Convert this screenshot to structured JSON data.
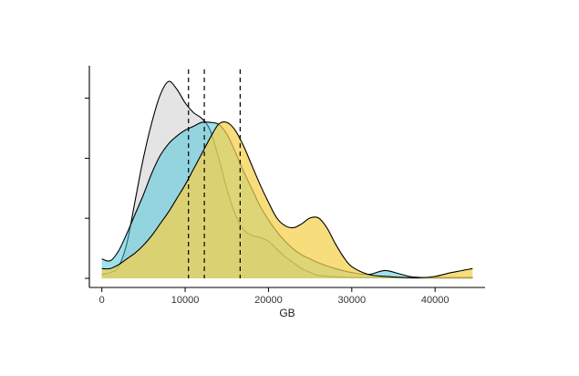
{
  "chart_data": {
    "type": "area",
    "title": "",
    "xlabel": "GB",
    "ylabel": "",
    "xlim": [
      -1500,
      46000
    ],
    "ylim": [
      0,
      1.1
    ],
    "x_ticks": [
      0,
      10000,
      20000,
      30000,
      40000
    ],
    "x_tick_labels": [
      "0",
      "10000",
      "20000",
      "30000",
      "40000"
    ],
    "y_tick_count": 4,
    "y_tick_labels_shown": false,
    "grid": false,
    "legend": "none",
    "series": [
      {
        "color": "#d9d9d9",
        "outline": "#000000",
        "opacity": 0.72,
        "points": [
          [
            0,
            0.02
          ],
          [
            1000,
            0.03
          ],
          [
            2000,
            0.06
          ],
          [
            3000,
            0.18
          ],
          [
            4000,
            0.4
          ],
          [
            5000,
            0.62
          ],
          [
            6000,
            0.8
          ],
          [
            7000,
            0.94
          ],
          [
            8000,
            1.01
          ],
          [
            9000,
            0.97
          ],
          [
            10000,
            0.9
          ],
          [
            11000,
            0.85
          ],
          [
            12000,
            0.82
          ],
          [
            13000,
            0.76
          ],
          [
            14000,
            0.62
          ],
          [
            15000,
            0.46
          ],
          [
            16000,
            0.33
          ],
          [
            17000,
            0.25
          ],
          [
            18000,
            0.22
          ],
          [
            19000,
            0.21
          ],
          [
            20000,
            0.19
          ],
          [
            21000,
            0.15
          ],
          [
            22000,
            0.11
          ],
          [
            23000,
            0.08
          ],
          [
            24000,
            0.05
          ],
          [
            25000,
            0.03
          ],
          [
            26000,
            0.015
          ],
          [
            28000,
            0.008
          ],
          [
            30000,
            0.005
          ],
          [
            34000,
            0.003
          ],
          [
            38000,
            0.002
          ],
          [
            44500,
            0.002
          ]
        ]
      },
      {
        "color": "#42c3d9",
        "outline": "#000000",
        "opacity": 0.5,
        "points": [
          [
            0,
            0.1
          ],
          [
            1000,
            0.09
          ],
          [
            2000,
            0.14
          ],
          [
            3000,
            0.23
          ],
          [
            4000,
            0.33
          ],
          [
            5000,
            0.43
          ],
          [
            6000,
            0.54
          ],
          [
            7000,
            0.63
          ],
          [
            8000,
            0.69
          ],
          [
            9000,
            0.73
          ],
          [
            10000,
            0.76
          ],
          [
            11000,
            0.78
          ],
          [
            12000,
            0.8
          ],
          [
            13000,
            0.8
          ],
          [
            14000,
            0.79
          ],
          [
            15000,
            0.74
          ],
          [
            16000,
            0.65
          ],
          [
            17000,
            0.55
          ],
          [
            18000,
            0.46
          ],
          [
            19000,
            0.37
          ],
          [
            20000,
            0.3
          ],
          [
            21000,
            0.24
          ],
          [
            22000,
            0.19
          ],
          [
            23000,
            0.15
          ],
          [
            24000,
            0.12
          ],
          [
            25000,
            0.1
          ],
          [
            26000,
            0.08
          ],
          [
            28000,
            0.05
          ],
          [
            30000,
            0.03
          ],
          [
            32000,
            0.02
          ],
          [
            34000,
            0.04
          ],
          [
            36000,
            0.02
          ],
          [
            38000,
            0.005
          ],
          [
            44500,
            0.005
          ]
        ]
      },
      {
        "color": "#f5d04a",
        "outline": "#000000",
        "opacity": 0.72,
        "points": [
          [
            0,
            0.05
          ],
          [
            1000,
            0.05
          ],
          [
            2000,
            0.07
          ],
          [
            3000,
            0.1
          ],
          [
            4000,
            0.13
          ],
          [
            5000,
            0.17
          ],
          [
            6000,
            0.22
          ],
          [
            7000,
            0.28
          ],
          [
            8000,
            0.34
          ],
          [
            9000,
            0.41
          ],
          [
            10000,
            0.48
          ],
          [
            11000,
            0.56
          ],
          [
            12000,
            0.64
          ],
          [
            13000,
            0.72
          ],
          [
            14000,
            0.79
          ],
          [
            15000,
            0.8
          ],
          [
            16000,
            0.76
          ],
          [
            17000,
            0.68
          ],
          [
            18000,
            0.58
          ],
          [
            19000,
            0.48
          ],
          [
            20000,
            0.39
          ],
          [
            21000,
            0.31
          ],
          [
            22000,
            0.27
          ],
          [
            23000,
            0.26
          ],
          [
            24000,
            0.28
          ],
          [
            25000,
            0.31
          ],
          [
            26000,
            0.31
          ],
          [
            27000,
            0.26
          ],
          [
            28000,
            0.18
          ],
          [
            29000,
            0.11
          ],
          [
            30000,
            0.06
          ],
          [
            32000,
            0.02
          ],
          [
            34000,
            0.01
          ],
          [
            36000,
            0.005
          ],
          [
            38000,
            0.003
          ],
          [
            40000,
            0.01
          ],
          [
            42000,
            0.03
          ],
          [
            44500,
            0.05
          ]
        ]
      }
    ],
    "reference_lines_x": [
      10400,
      12300,
      16600
    ]
  }
}
